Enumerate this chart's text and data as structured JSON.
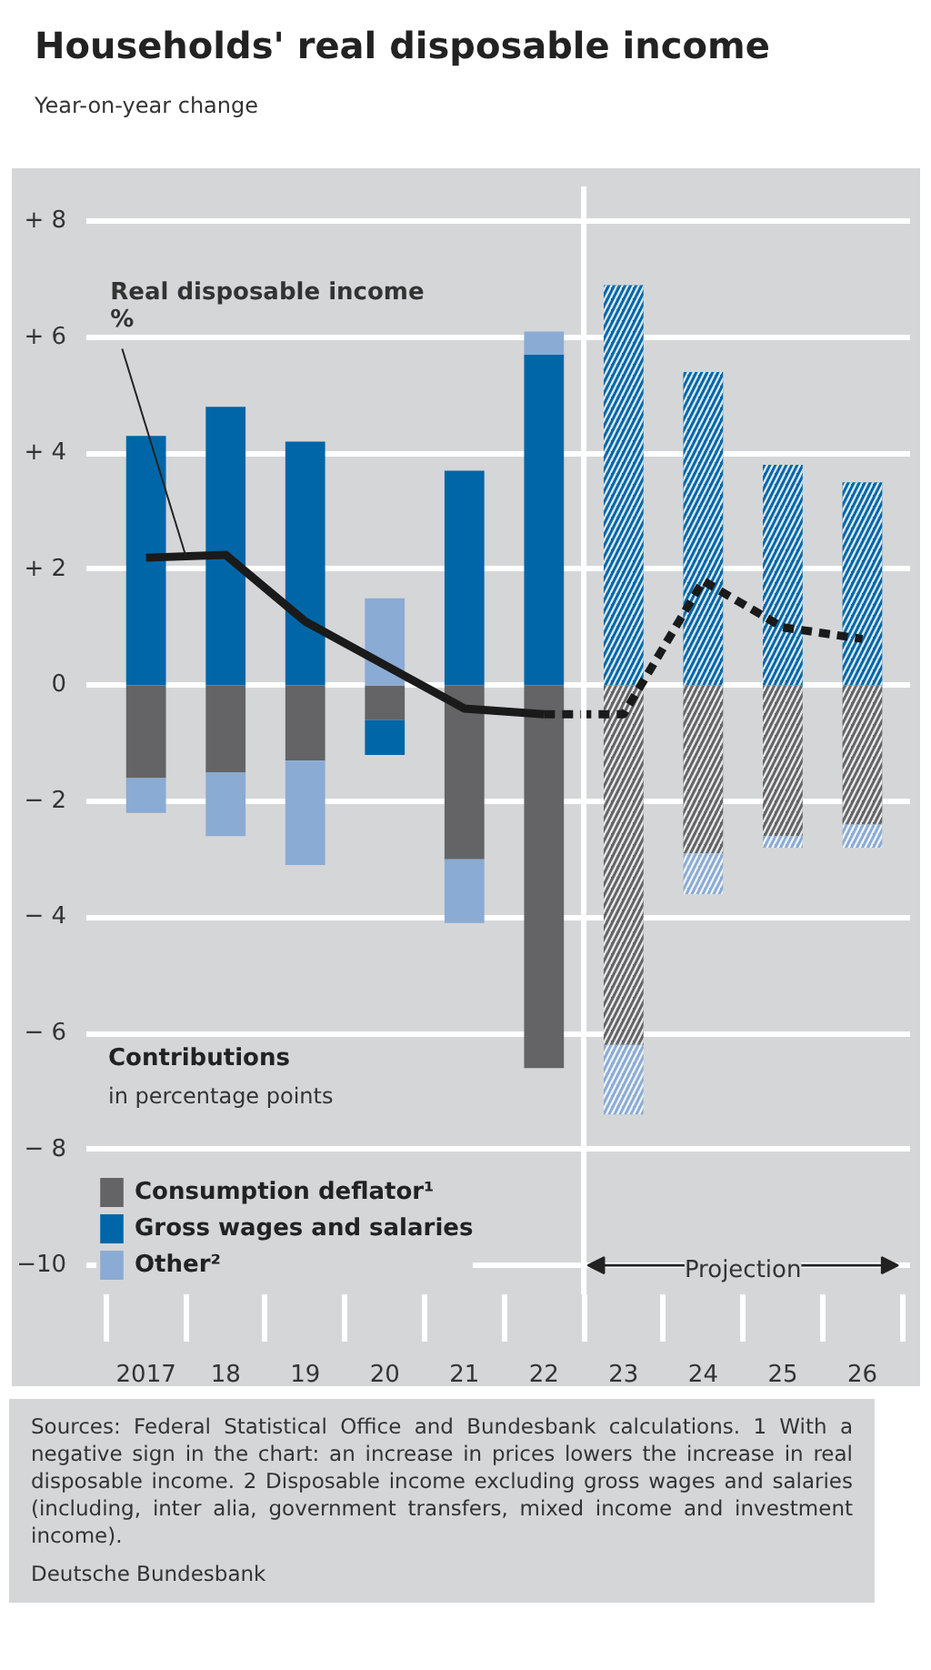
{
  "chart_data": {
    "type": "bar",
    "title": "Households' real disposable income",
    "subtitle": "Year-on-year change",
    "categories": [
      "2017",
      "18",
      "19",
      "20",
      "21",
      "22",
      "23",
      "24",
      "25",
      "26"
    ],
    "stacked": true,
    "series": [
      {
        "name": "Consumption deflator¹",
        "color": "#646466",
        "values": [
          -1.6,
          -1.5,
          -1.3,
          -0.6,
          -3.0,
          -6.6,
          -6.2,
          -2.9,
          -2.6,
          -2.4
        ]
      },
      {
        "name": "Gross wages and salaries",
        "color": "#0066a8",
        "values": [
          4.3,
          4.8,
          4.2,
          -0.6,
          3.7,
          5.7,
          6.9,
          5.4,
          3.8,
          3.5
        ]
      },
      {
        "name": "Other²",
        "color": "#8aabd3",
        "values": [
          -0.6,
          -1.1,
          -1.8,
          1.5,
          -1.1,
          0.4,
          -1.2,
          -0.7,
          -0.2,
          -0.4
        ]
      },
      {
        "type": "line",
        "name": "Real disposable income\n%",
        "color": "#1a1a1a",
        "line_style": "solid",
        "values": [
          2.2,
          2.25,
          1.1,
          0.35,
          -0.4,
          -0.5,
          null,
          null,
          null,
          null
        ]
      },
      {
        "type": "line",
        "color": "#1a1a1a",
        "line_style": "dashed",
        "values": [
          null,
          null,
          null,
          null,
          null,
          -0.5,
          -0.5,
          1.8,
          1.0,
          0.8
        ]
      }
    ],
    "ylim": [
      -10.5,
      8.6
    ],
    "yticks": [
      {
        "value": 8,
        "label": "+ 8"
      },
      {
        "value": 6,
        "label": "+ 6"
      },
      {
        "value": 4,
        "label": "+ 4"
      },
      {
        "value": 2,
        "label": "+ 2"
      },
      0,
      {
        "value": -2,
        "label": "− 2"
      },
      {
        "value": -4,
        "label": "− 4"
      },
      {
        "value": -6,
        "label": "− 6"
      },
      {
        "value": -8,
        "label": "− 8"
      },
      {
        "value": -10,
        "label": "−10"
      }
    ],
    "grid": "y",
    "legend": "bottom left",
    "legend_title": "Contributions",
    "ref_lines": [
      {
        "axis": "x",
        "value": "23",
        "label": "Projection",
        "color": "#ffffff"
      }
    ],
    "annotations": [
      "in percentage points",
      "Sources: Federal Statistical Office and Bundesbank calculations.",
      "1 With a negative sign in the chart: an increase in prices lowers the increase in real disposable income.",
      "2 Disposable income excluding gross wages and salaries (including, inter alia, government transfers, mixed income and investment income).",
      "Deutsche Bundesbank"
    ]
  }
}
